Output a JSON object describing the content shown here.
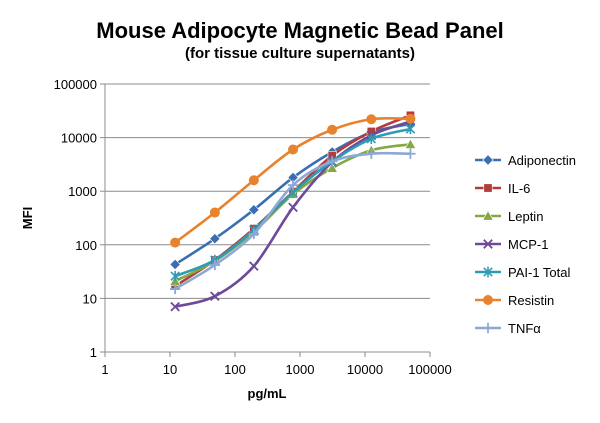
{
  "chart_data": {
    "type": "line",
    "title": "Mouse Adipocyte Magnetic Bead Panel",
    "subtitle": "(for tissue culture supernatants)",
    "xlabel": "pg/mL",
    "ylabel": "MFI",
    "x_scale": "log",
    "y_scale": "log",
    "xlim": [
      1,
      100000
    ],
    "ylim": [
      1,
      100000
    ],
    "x_ticks": [
      "1",
      "10",
      "100",
      "1000",
      "10000",
      "100000"
    ],
    "y_ticks": [
      "1",
      "10",
      "100",
      "1000",
      "10000",
      "100000"
    ],
    "grid": "horizontal",
    "legend_position": "right",
    "x": [
      12,
      49,
      195,
      781,
      3125,
      12500,
      50000
    ],
    "series": [
      {
        "name": "Adiponectin",
        "color": "#3A6EB0",
        "marker": "diamond",
        "values": [
          43,
          130,
          450,
          1800,
          5400,
          12500,
          18000
        ]
      },
      {
        "name": "IL-6",
        "color": "#B33C3C",
        "marker": "square",
        "values": [
          17,
          52,
          200,
          980,
          4600,
          13000,
          26000
        ]
      },
      {
        "name": "Leptin",
        "color": "#84A842",
        "marker": "triangle",
        "values": [
          21,
          50,
          175,
          880,
          2700,
          5800,
          7500
        ]
      },
      {
        "name": "MCP-1",
        "color": "#6E4A98",
        "marker": "x",
        "values": [
          7,
          11,
          40,
          500,
          3500,
          11000,
          20000
        ]
      },
      {
        "name": "PAI-1 Total",
        "color": "#2E9BB5",
        "marker": "asterisk",
        "values": [
          26,
          52,
          190,
          950,
          3600,
          9500,
          14500
        ]
      },
      {
        "name": "Resistin",
        "color": "#E8822D",
        "marker": "circle",
        "values": [
          110,
          400,
          1600,
          6000,
          14000,
          22000,
          22500
        ]
      },
      {
        "name": "TNFα",
        "color": "#8EA8D6",
        "marker": "plus",
        "values": [
          15,
          42,
          160,
          1300,
          3600,
          5000,
          5000
        ]
      }
    ]
  }
}
